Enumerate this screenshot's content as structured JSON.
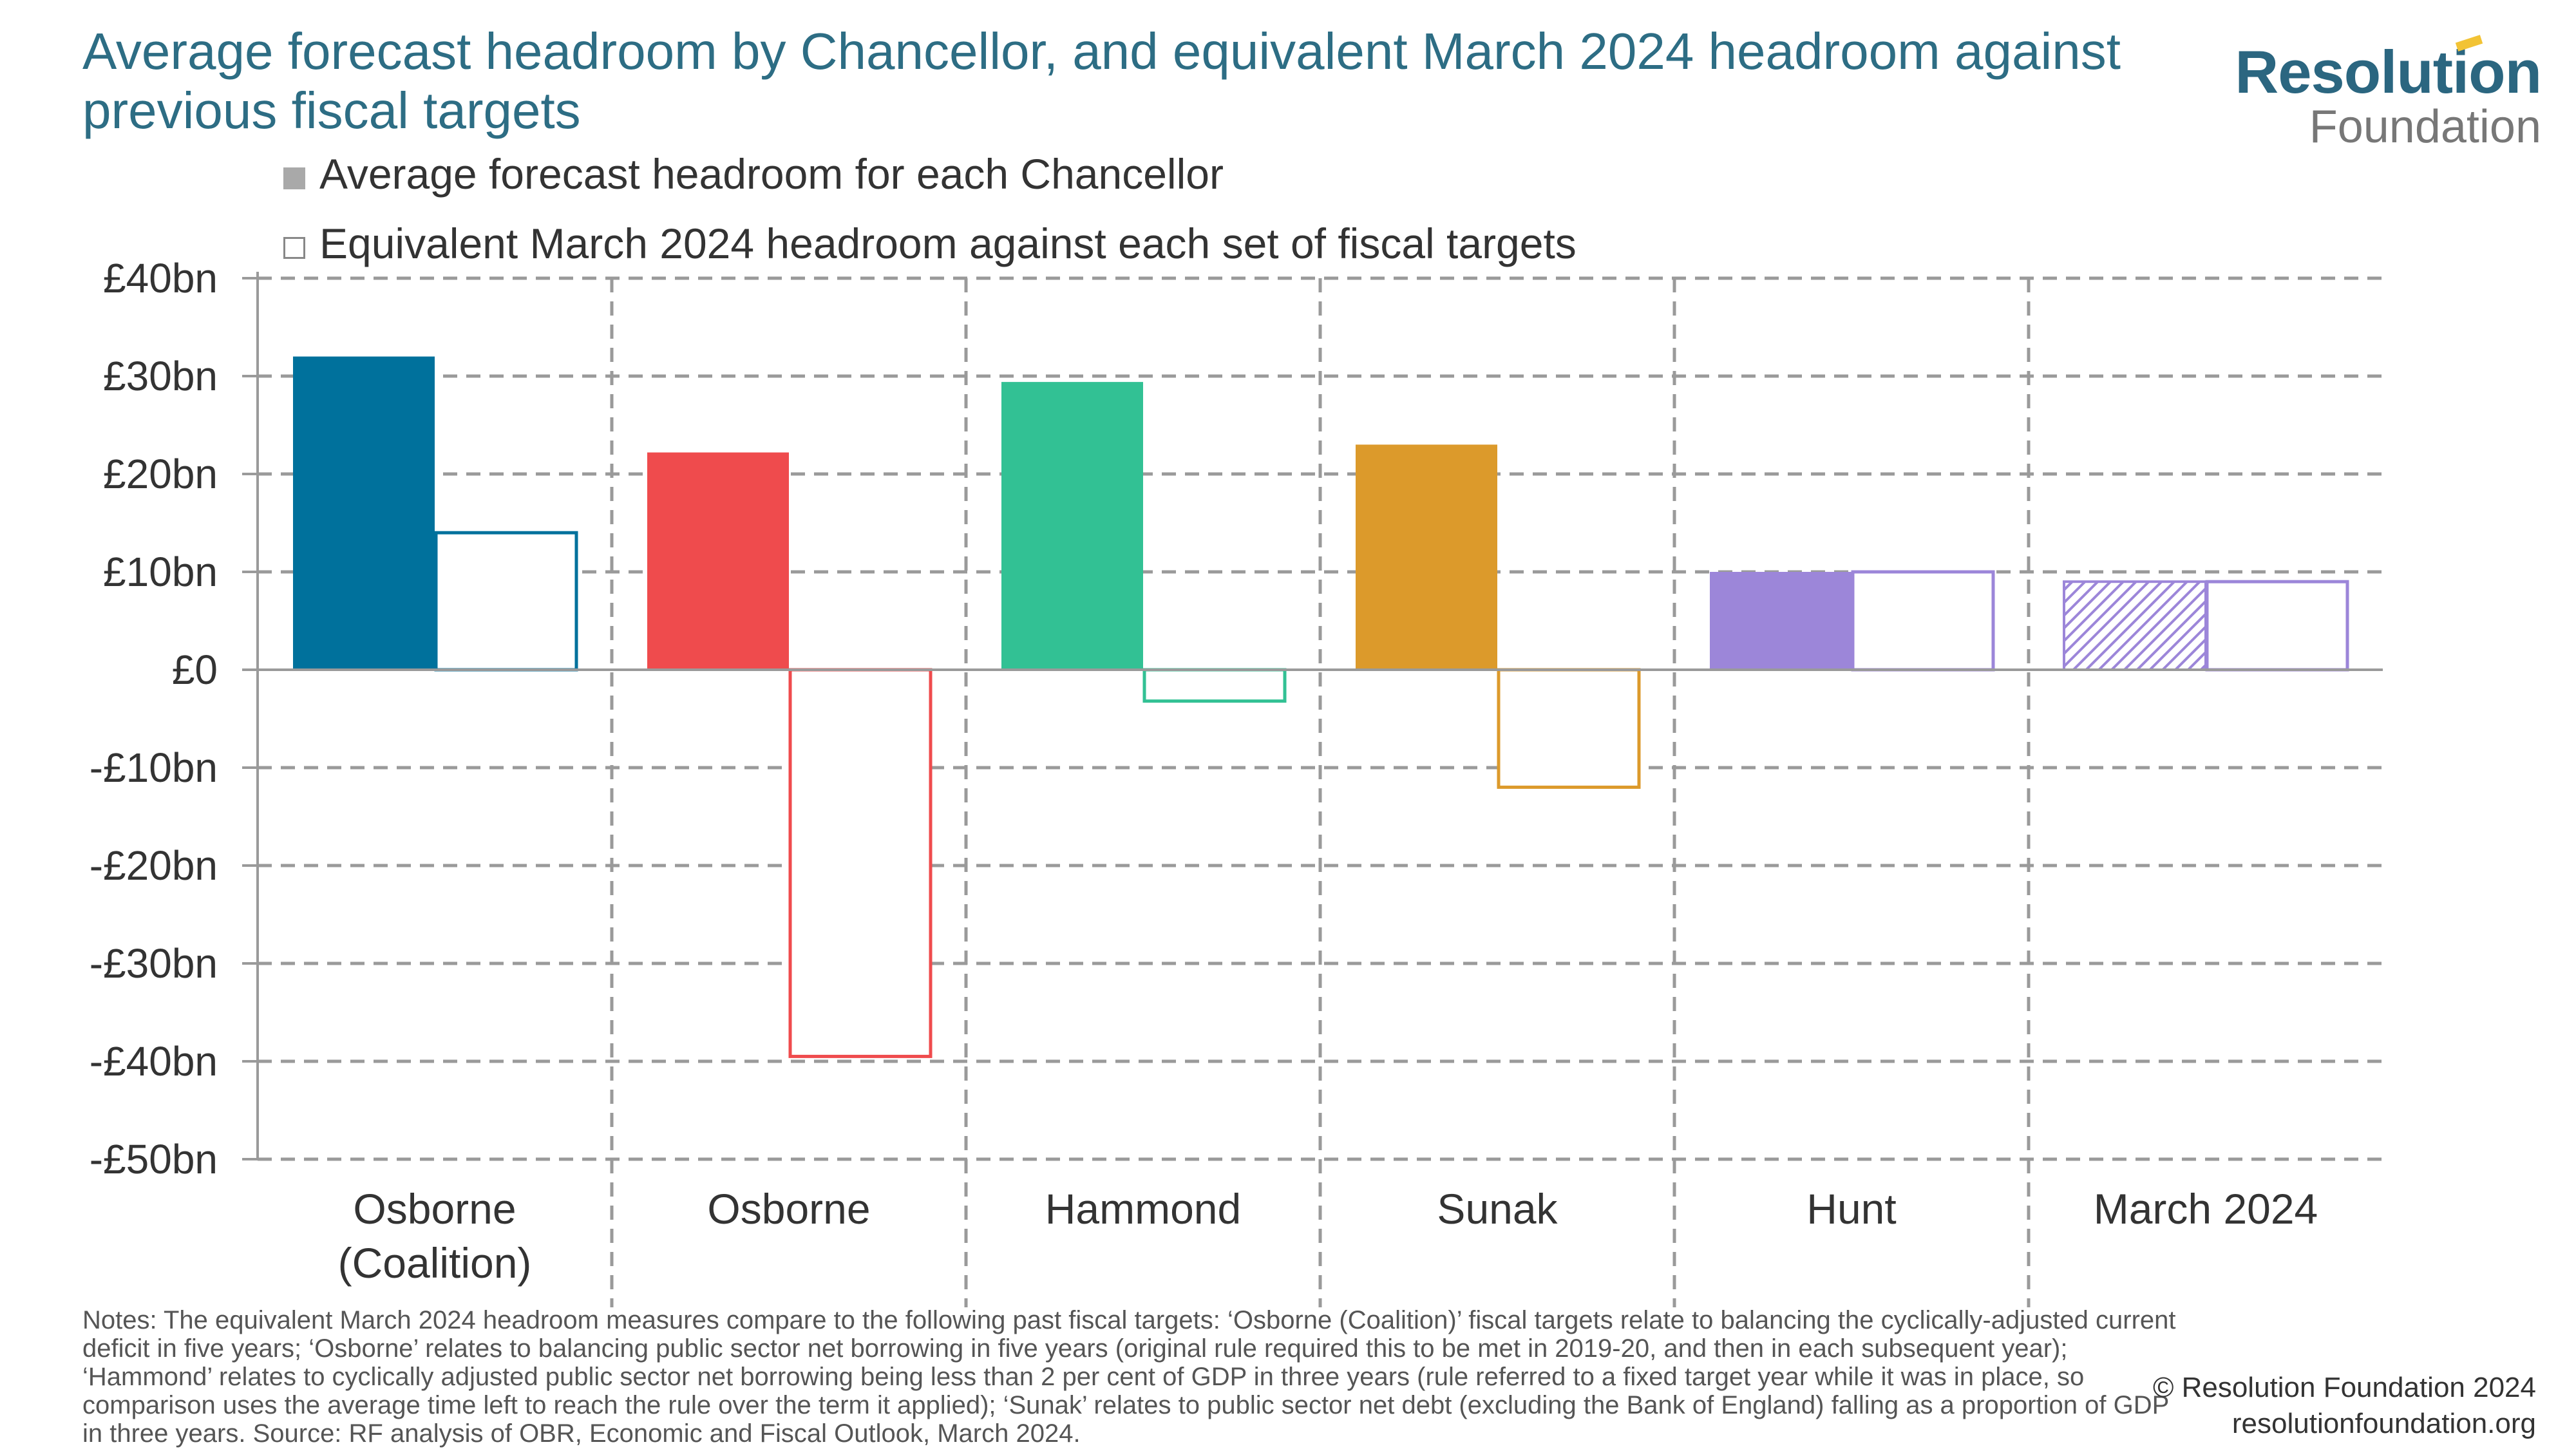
{
  "title": "Average forecast headroom by Chancellor, and equivalent March 2024 headroom against previous fiscal targets",
  "logo": {
    "line1": "Resolution",
    "line2": "Foundation"
  },
  "notes": "Notes: The equivalent March 2024 headroom measures compare to the following past fiscal targets: ‘Osborne (Coalition)’ fiscal targets relate to balancing the cyclically-adjusted current deficit in five years; ‘Osborne’ relates to balancing public sector net borrowing in five years (original rule required this to be met in 2019-20, and then in each subsequent year); ‘Hammond’ relates to cyclically adjusted public sector net borrowing being less than 2 per cent of GDP in three years (rule referred to a fixed target year while it was in place, so comparison uses the average time left to reach the rule over the term it applied); ‘Sunak’ relates to public sector net debt (excluding the Bank of England) falling as a proportion of GDP in three years.  Source: RF analysis of OBR, Economic and Fiscal Outlook, March 2024.",
  "copyright": {
    "line1": "© Resolution Foundation 2024",
    "line2": "resolutionfoundation.org"
  },
  "chart_data": {
    "type": "bar",
    "categories": [
      [
        "Osborne",
        "(Coalition)"
      ],
      [
        "Osborne"
      ],
      [
        "Hammond"
      ],
      [
        "Sunak"
      ],
      [
        "Hunt"
      ],
      [
        "March 2024"
      ]
    ],
    "series": [
      {
        "name": "Average forecast headroom for each Chancellor",
        "values": [
          32,
          22.2,
          29.4,
          23,
          10,
          9
        ],
        "style": "filled"
      },
      {
        "name": "Equivalent March 2024 headroom against each set of fiscal targets",
        "values": [
          14,
          -39.5,
          -3.2,
          -12,
          10,
          9
        ],
        "style": "outline"
      }
    ],
    "category_colors": [
      "#00719c",
      "#ef4b4d",
      "#32c194",
      "#dc9a2b",
      "#9c86d9",
      "#9c86d9"
    ],
    "hatched_first_series": [
      false,
      false,
      false,
      false,
      false,
      true
    ],
    "ylim": [
      -50,
      40
    ],
    "yticks": [
      40,
      30,
      20,
      10,
      0,
      -10,
      -20,
      -30,
      -40,
      -50
    ],
    "ytick_labels": [
      "£40bn",
      "£30bn",
      "£20bn",
      "£10bn",
      "£0",
      "-£10bn",
      "-£20bn",
      "-£30bn",
      "-£40bn",
      "-£50bn"
    ],
    "grid": true,
    "legend_position": "top-left"
  }
}
